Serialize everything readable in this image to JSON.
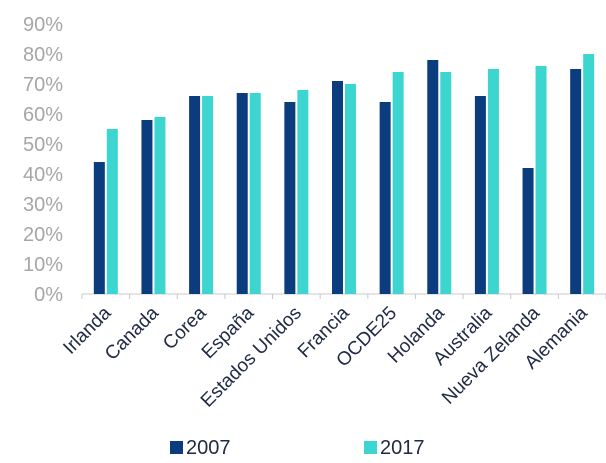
{
  "chart_data": {
    "type": "bar",
    "title": "",
    "xlabel": "",
    "ylabel": "",
    "categories": [
      "Irlanda",
      "Canada",
      "Corea",
      "España",
      "Estados Unidos",
      "Francia",
      "OCDE25",
      "Holanda",
      "Australia",
      "Nueva Zelanda",
      "Alemania"
    ],
    "series": [
      {
        "name": "2007",
        "color": "#0b3c7d",
        "values": [
          44,
          58,
          66,
          67,
          64,
          71,
          64,
          78,
          66,
          42,
          75
        ]
      },
      {
        "name": "2017",
        "color": "#3dd5cf",
        "values": [
          55,
          59,
          66,
          67,
          68,
          70,
          74,
          74,
          75,
          76,
          80
        ]
      }
    ],
    "ylim": [
      0,
      90
    ],
    "yticks": [
      0,
      10,
      20,
      30,
      40,
      50,
      60,
      70,
      80,
      90
    ],
    "ytick_labels": [
      "0%",
      "10%",
      "20%",
      "30%",
      "40%",
      "50%",
      "60%",
      "70%",
      "80%",
      "90%"
    ],
    "grid": false,
    "legend_position": "bottom"
  }
}
